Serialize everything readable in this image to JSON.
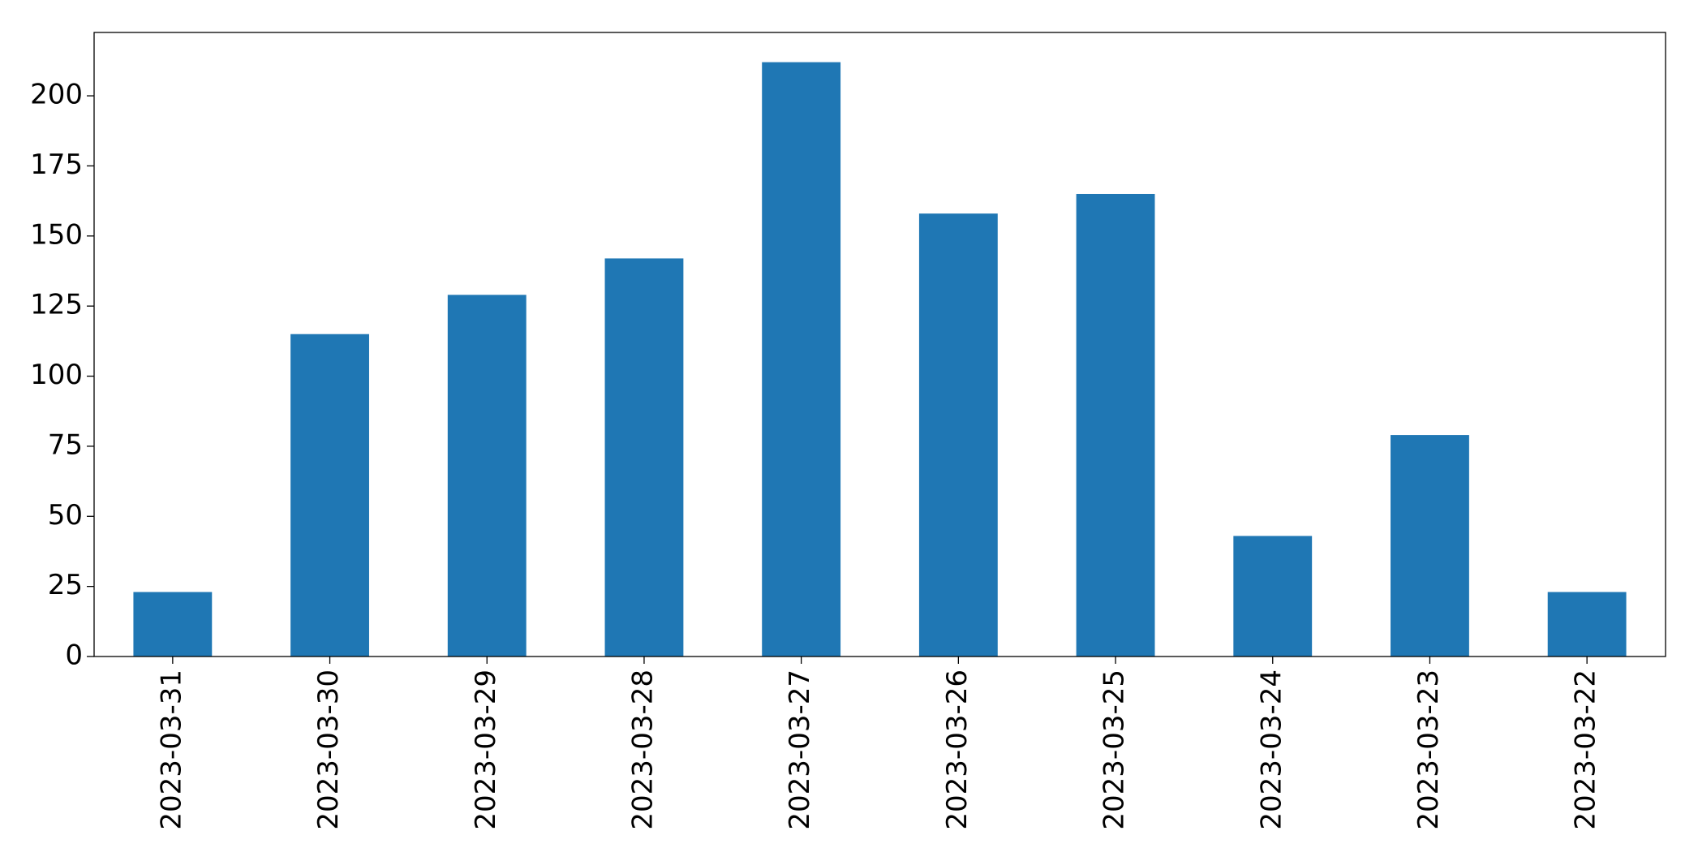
{
  "chart_data": {
    "type": "bar",
    "categories": [
      "2023-03-31",
      "2023-03-30",
      "2023-03-29",
      "2023-03-28",
      "2023-03-27",
      "2023-03-26",
      "2023-03-25",
      "2023-03-24",
      "2023-03-23",
      "2023-03-22"
    ],
    "values": [
      23,
      115,
      129,
      142,
      212,
      158,
      165,
      43,
      79,
      23
    ],
    "color": "#1f77b4",
    "ylim": [
      0,
      222.6
    ],
    "yticks": [
      0,
      25,
      50,
      75,
      100,
      125,
      150,
      175,
      200
    ],
    "grid": false
  }
}
